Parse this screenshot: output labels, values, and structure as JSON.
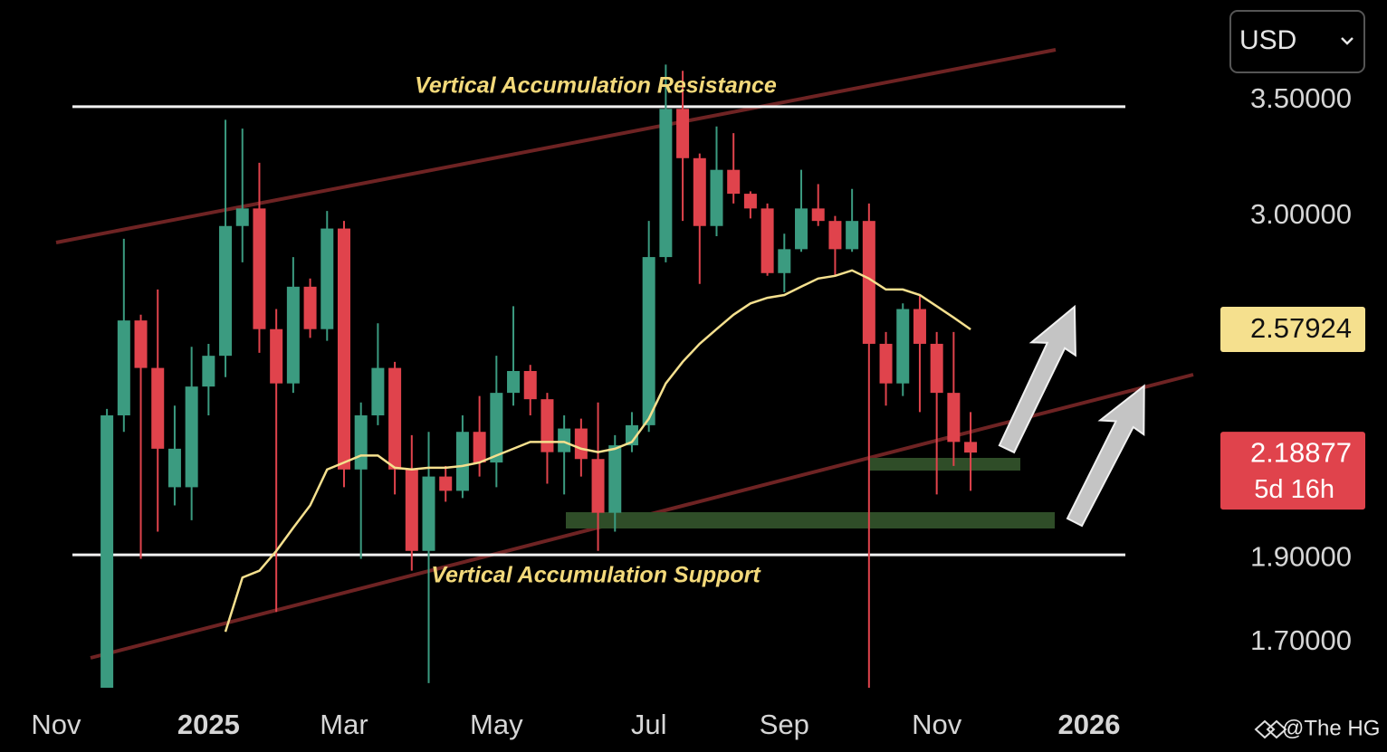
{
  "chart_data": {
    "type": "candlestick",
    "currency": "USD",
    "watermark": "@The HG",
    "categories": [
      "Nov",
      null,
      null,
      null,
      null,
      null,
      null,
      null,
      null,
      "2025",
      null,
      null,
      null,
      null,
      null,
      null,
      null,
      "Mar",
      null,
      null,
      null,
      null,
      null,
      null,
      null,
      null,
      "May",
      null,
      null,
      null,
      null,
      null,
      null,
      null,
      null,
      "Jul",
      null,
      null,
      null,
      null,
      null,
      null,
      null,
      "Sep",
      null,
      null,
      null,
      null,
      null,
      null,
      null,
      null,
      "Nov",
      null,
      null,
      null,
      null,
      null,
      null,
      null,
      null,
      "2026"
    ],
    "open": [
      null,
      null,
      null,
      1.6,
      2.3,
      2.61,
      2.45,
      2.09,
      2.09,
      2.39,
      2.49,
      2.96,
      3.03,
      2.58,
      2.4,
      2.73,
      2.58,
      2.95,
      2.14,
      2.3,
      2.45,
      2.14,
      1.92,
      2.12,
      2.08,
      2.25,
      2.16,
      2.37,
      2.44,
      2.35,
      2.19,
      2.26,
      2.17,
      2.02,
      2.21,
      2.27,
      2.84,
      3.46,
      3.24,
      2.96,
      3.19,
      3.09,
      3.03,
      2.78,
      2.87,
      3.03,
      2.98,
      2.87,
      2.98,
      2.53,
      2.4,
      2.65,
      2.53,
      2.37,
      2.22,
      null,
      null,
      null,
      null,
      null,
      null,
      null
    ],
    "high": [
      null,
      null,
      null,
      2.32,
      2.91,
      2.63,
      2.72,
      2.33,
      2.52,
      2.53,
      3.41,
      3.37,
      3.22,
      2.65,
      2.84,
      2.76,
      3.02,
      2.98,
      2.34,
      2.6,
      2.47,
      2.24,
      2.25,
      2.15,
      2.3,
      2.36,
      2.49,
      2.66,
      2.46,
      2.37,
      2.3,
      2.29,
      2.34,
      2.24,
      2.31,
      2.98,
      3.67,
      3.64,
      3.26,
      3.38,
      3.35,
      3.1,
      3.05,
      2.93,
      3.19,
      3.13,
      3.0,
      3.11,
      3.05,
      2.57,
      2.67,
      2.7,
      2.57,
      2.57,
      2.31,
      null,
      null,
      null,
      null,
      null,
      null,
      null
    ],
    "low": [
      null,
      null,
      null,
      1.6,
      2.25,
      1.9,
      1.97,
      2.04,
      2.0,
      2.3,
      2.42,
      2.82,
      2.5,
      1.77,
      2.37,
      2.55,
      2.54,
      2.09,
      1.9,
      2.27,
      2.07,
      1.87,
      1.61,
      2.05,
      2.06,
      2.12,
      2.09,
      2.33,
      2.3,
      2.1,
      2.07,
      2.12,
      1.92,
      1.97,
      2.19,
      2.25,
      2.82,
      2.98,
      2.74,
      2.92,
      3.05,
      2.99,
      2.77,
      2.71,
      2.86,
      2.96,
      2.77,
      2.86,
      1.6,
      2.33,
      2.36,
      2.31,
      2.07,
      2.15,
      2.08,
      null,
      null,
      null,
      null,
      null,
      null,
      null
    ],
    "close": [
      null,
      null,
      null,
      2.3,
      2.61,
      2.45,
      2.2,
      2.2,
      2.39,
      2.49,
      2.96,
      3.03,
      2.58,
      2.4,
      2.73,
      2.58,
      2.95,
      2.14,
      2.3,
      2.45,
      2.14,
      1.92,
      2.12,
      2.08,
      2.25,
      2.16,
      2.37,
      2.44,
      2.35,
      2.19,
      2.26,
      2.17,
      2.02,
      2.21,
      2.27,
      2.84,
      3.46,
      3.24,
      2.96,
      3.19,
      3.09,
      3.03,
      2.78,
      2.87,
      3.03,
      2.98,
      2.87,
      2.98,
      2.53,
      2.4,
      2.65,
      2.53,
      2.37,
      2.22,
      2.18877,
      null,
      null,
      null,
      null,
      null,
      null,
      null
    ],
    "up_color": "#3b9b80",
    "down_color": "#e0434c",
    "ma": {
      "color": "#f5e08e",
      "values": [
        null,
        null,
        null,
        null,
        null,
        null,
        null,
        null,
        null,
        null,
        1.724,
        1.853,
        1.87,
        1.92,
        1.98,
        2.04,
        2.14,
        2.16,
        2.18,
        2.18,
        2.145,
        2.14,
        2.145,
        2.145,
        2.15,
        2.16,
        2.18,
        2.2,
        2.22,
        2.22,
        2.22,
        2.2,
        2.19,
        2.2,
        2.22,
        2.29,
        2.4,
        2.47,
        2.53,
        2.58,
        2.63,
        2.67,
        2.69,
        2.7,
        2.73,
        2.76,
        2.77,
        2.79,
        2.76,
        2.72,
        2.72,
        2.7,
        2.66,
        2.62,
        2.57924,
        null,
        null,
        null,
        null,
        null,
        null,
        null
      ]
    },
    "countdown": "5d 16h",
    "annotations": [
      {
        "text": "Vertical Accumulation Resistance",
        "value": 3.47
      },
      {
        "text": "Vertical Accumulation Support",
        "value": 1.91
      }
    ],
    "ylim": [
      1.6,
      4.0
    ],
    "log_scale": true,
    "yticks": [
      {
        "value": 1.7,
        "label": "1.70000"
      },
      {
        "value": 1.9,
        "label": "1.90000"
      },
      {
        "value": 3.0,
        "label": "3.00000"
      },
      {
        "value": 3.5,
        "label": "3.50000"
      }
    ],
    "grid": false
  }
}
